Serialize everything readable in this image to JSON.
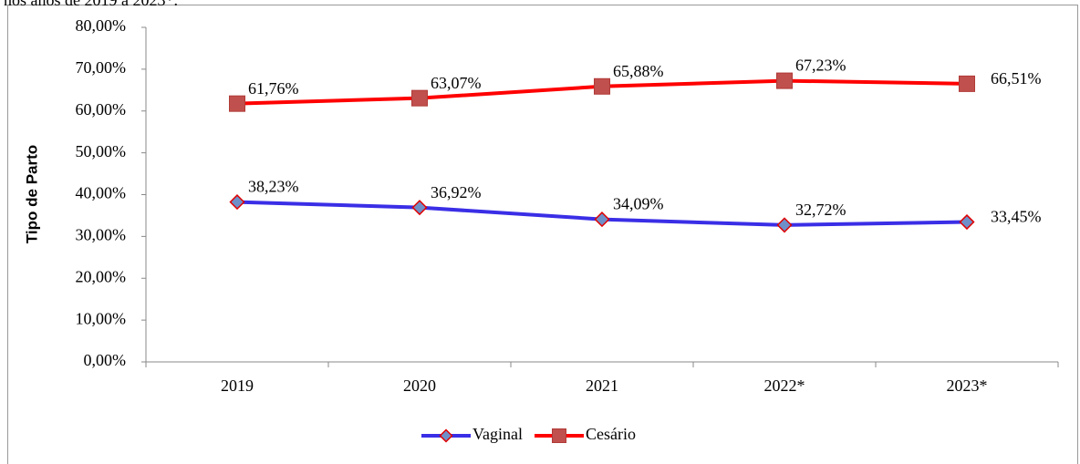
{
  "caption": "nos anos de 2019 a 2023*.",
  "chart_data": {
    "type": "line",
    "y_label": "Tipo de Parto",
    "categories": [
      "2019",
      "2020",
      "2021",
      "2022*",
      "2023*"
    ],
    "series": [
      {
        "name": "Vaginal",
        "color": "#3a2ee6",
        "marker": "diamond",
        "marker_color": "#6f8fc8",
        "marker_edge": "#e00000",
        "values": [
          38.23,
          36.92,
          34.09,
          32.72,
          33.45
        ],
        "value_labels": [
          "38,23%",
          "36,92%",
          "34,09%",
          "32,72%",
          "33,45%"
        ]
      },
      {
        "name": "Cesário",
        "color": "#ff0000",
        "marker": "square",
        "marker_color": "#c0504d",
        "marker_edge": "#b03a37",
        "values": [
          61.76,
          63.07,
          65.88,
          67.23,
          66.51
        ],
        "value_labels": [
          "61,76%",
          "63,07%",
          "65,88%",
          "67,23%",
          "66,51%"
        ]
      }
    ],
    "ylim": [
      0,
      80
    ],
    "yticks": [
      {
        "value": 0,
        "label": "0,00%"
      },
      {
        "value": 10,
        "label": "10,00%"
      },
      {
        "value": 20,
        "label": "20,00%"
      },
      {
        "value": 30,
        "label": "30,00%"
      },
      {
        "value": 40,
        "label": "40,00%"
      },
      {
        "value": 50,
        "label": "50,00%"
      },
      {
        "value": 60,
        "label": "60,00%"
      },
      {
        "value": 70,
        "label": "70,00%"
      },
      {
        "value": 80,
        "label": "80,00%"
      }
    ],
    "grid": false,
    "legend": "bottom"
  }
}
